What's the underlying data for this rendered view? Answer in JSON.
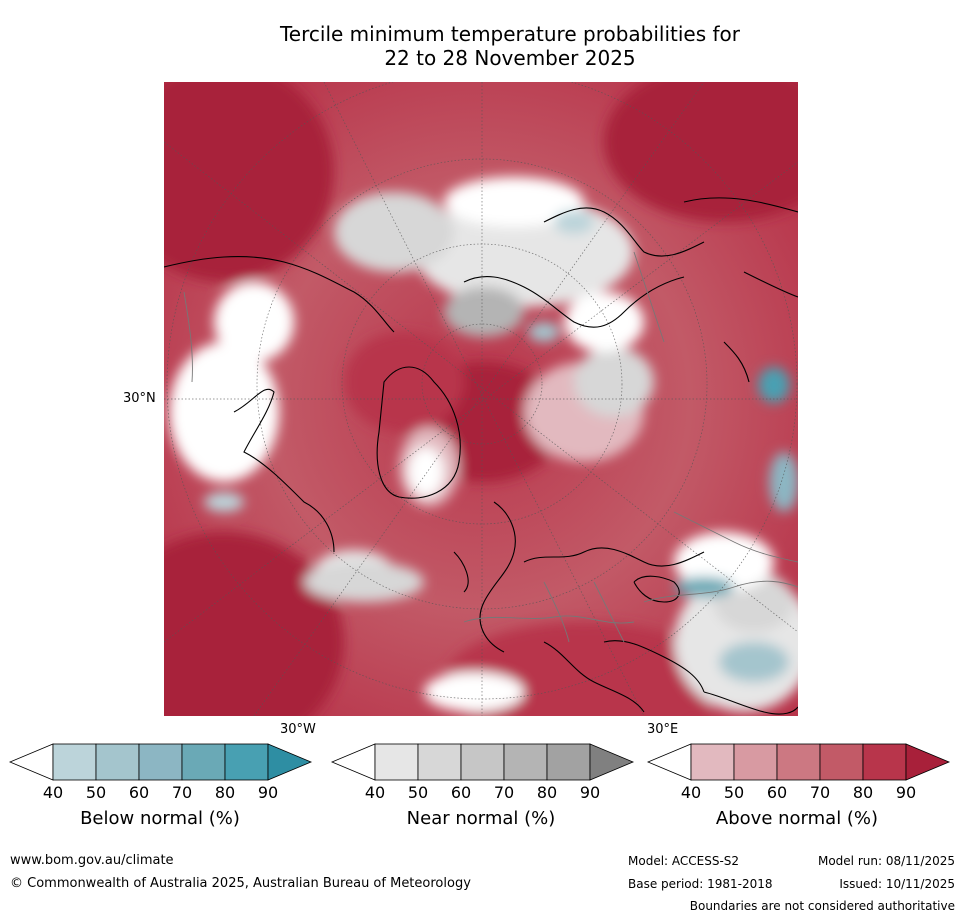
{
  "title": {
    "line1": "Tercile minimum temperature probabilities for",
    "line2": "22 to 28 November 2025"
  },
  "map": {
    "lat_labels": {
      "left": "30°N"
    },
    "lon_labels": {
      "west": "30°W",
      "east": "30°E"
    }
  },
  "colorbars": [
    {
      "label": "Below normal (%)",
      "ticks": [
        "40",
        "50",
        "60",
        "70",
        "80",
        "90"
      ],
      "colors": [
        "#ffffff",
        "#bcd4da",
        "#a4c5cd",
        "#8cb6c3",
        "#6aa9b6",
        "#48a0b2",
        "#2e8ea3"
      ]
    },
    {
      "label": "Near normal (%)",
      "ticks": [
        "40",
        "50",
        "60",
        "70",
        "80",
        "90"
      ],
      "colors": [
        "#ffffff",
        "#e6e6e6",
        "#d7d7d7",
        "#c6c6c6",
        "#b4b4b4",
        "#a2a2a2",
        "#808080"
      ]
    },
    {
      "label": "Above normal (%)",
      "ticks": [
        "40",
        "50",
        "60",
        "70",
        "80",
        "90"
      ],
      "colors": [
        "#ffffff",
        "#e2b9bf",
        "#d89aa2",
        "#cc7882",
        "#c25a67",
        "#b8354b",
        "#a8203a"
      ]
    }
  ],
  "footer": {
    "website": "www.bom.gov.au/climate",
    "copyright": "© Commonwealth of Australia 2025, Australian Bureau of Meteorology",
    "model": "Model: ACCESS-S2",
    "model_run": "Model run: 08/11/2025",
    "base_period": "Base period: 1981-2018",
    "issued": "Issued: 10/11/2025",
    "disclaimer": "Boundaries are not considered authoritative"
  }
}
